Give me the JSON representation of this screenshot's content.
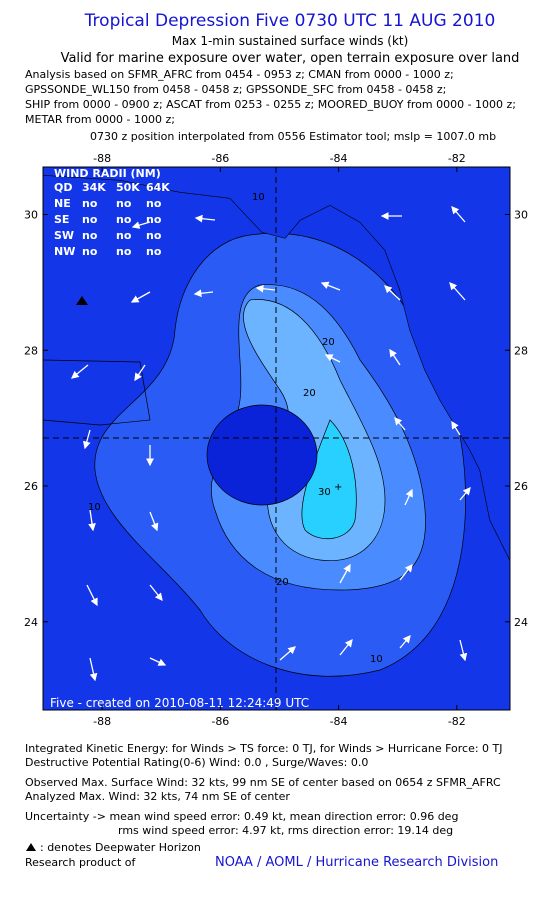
{
  "header": {
    "title": "Tropical Depression Five 0730 UTC 11 AUG 2010",
    "subtitle": "Max 1-min sustained surface winds (kt)",
    "validity": "Valid for marine exposure over water, open terrain exposure over land",
    "analysis": [
      "Analysis based on SFMR_AFRC from 0454 - 0953 z; CMAN from 0000 - 1000 z;",
      "GPSSONDE_WL150 from 0458 - 0458 z; GPSSONDE_SFC from 0458 - 0458 z;",
      "SHIP from 0000 - 0900 z; ASCAT from 0253 - 0255 z; MOORED_BUOY from 0000 - 1000 z;",
      "METAR from 0000 - 1000 z;"
    ],
    "position_note": "0730 z position interpolated from 0556 Estimator tool; mslp = 1007.0 mb"
  },
  "map": {
    "xlim": [
      -89,
      -81.1
    ],
    "ylim": [
      22.7,
      30.7
    ],
    "xticks": [
      -88,
      -86,
      -84,
      -82
    ],
    "yticks": [
      24,
      26,
      28,
      30
    ],
    "wind_radii": {
      "title": "WIND RADII (NM)",
      "columns": [
        "QD",
        "34K",
        "50K",
        "64K"
      ],
      "rows": [
        [
          "NE",
          "no",
          "no",
          "no"
        ],
        [
          "SE",
          "no",
          "no",
          "no"
        ],
        [
          "SW",
          "no",
          "no",
          "no"
        ],
        [
          "NW",
          "no",
          "no",
          "no"
        ]
      ]
    },
    "contour_labels": [
      "10",
      "20",
      "20",
      "30",
      "10",
      "10",
      "20"
    ],
    "credit": "Five - created on 2010-08-11 12:24:49 UTC"
  },
  "footer": {
    "lines": [
      "Integrated Kinetic Energy:  for Winds > TS force: 0 TJ,  for Winds > Hurricane Force: 0 TJ",
      "Destructive Potential Rating(0-6)   Wind: 0.0 , Surge/Waves: 0.0",
      "Observed Max. Surface Wind: 32 kts, 99 nm SE of center based on 0654 z SFMR_AFRC",
      "Analyzed Max. Wind: 32 kts, 74 nm SE of center",
      "Uncertainty -> mean wind speed error: 0.49 kt,   mean direction error: 0.96 deg",
      "rms wind speed error: 4.97 kt,   rms direction error: 19.14 deg"
    ],
    "legend": ": denotes Deepwater Horizon",
    "research": "Research product of",
    "org": "NOAA / AOML / Hurricane Research Division"
  }
}
